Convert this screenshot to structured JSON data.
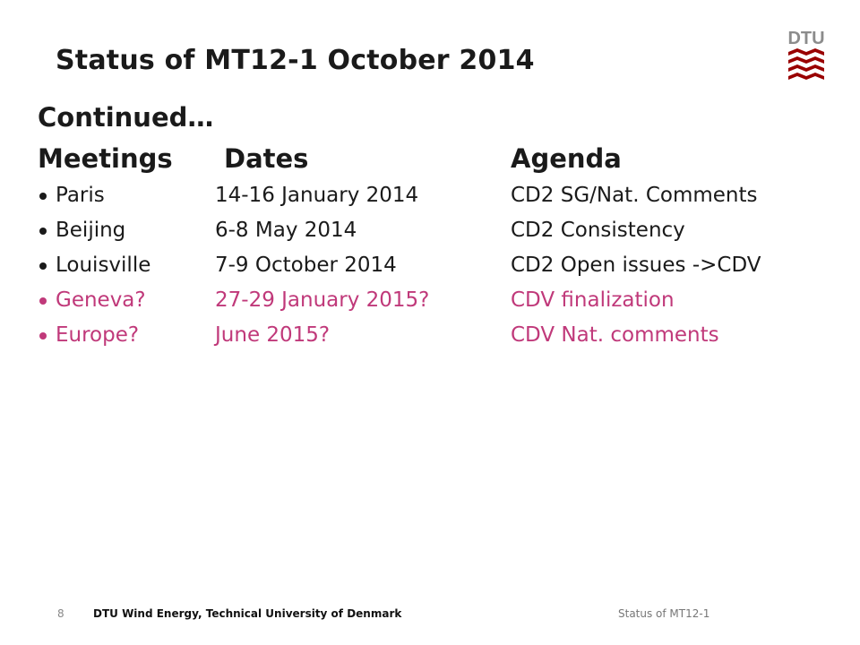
{
  "title": "Status of MT12-1 October 2014",
  "subtitle": "Continued…",
  "columns": [
    "Meetings",
    "Dates",
    "Agenda"
  ],
  "rows": [
    {
      "meeting": "Paris",
      "dates": "14-16 January 2014",
      "agenda": "CD2 SG/Nat. Comments",
      "highlight": false
    },
    {
      "meeting": "Beijing",
      "dates": "6-8 May 2014",
      "agenda": "CD2 Consistency",
      "highlight": false
    },
    {
      "meeting": "Louisville",
      "dates": "7-9 October 2014",
      "agenda": "CD2 Open issues ->CDV",
      "highlight": false
    },
    {
      "meeting": "Geneva?",
      "dates": "27-29 January 2015?",
      "agenda": "CDV finalization",
      "highlight": true
    },
    {
      "meeting": "Europe?",
      "dates": "June 2015?",
      "agenda": "CDV Nat. comments",
      "highlight": true
    }
  ],
  "footer": {
    "page_number": "8",
    "organization": "DTU Wind Energy, Technical University of Denmark",
    "presentation_title": "Status of MT12-1"
  },
  "logo": {
    "text": "DTU",
    "icon": "dtu-logo-icon"
  },
  "colors": {
    "accent": "#c0397a",
    "logo_red": "#990000",
    "logo_gray": "#8c8c8c"
  }
}
